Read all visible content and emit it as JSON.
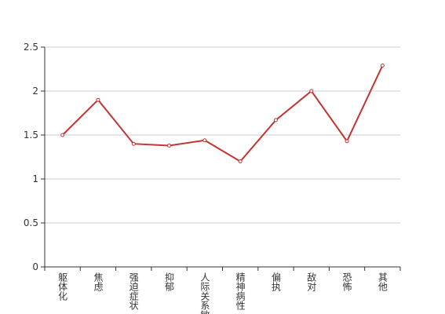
{
  "chart_data": {
    "type": "line",
    "categories": [
      "躯体化",
      "焦虑",
      "强迫症状",
      "抑郁",
      "人际关系敏感",
      "精神病性",
      "偏执",
      "敌对",
      "恐怖",
      "其他"
    ],
    "values": [
      1.5,
      1.9,
      1.4,
      1.38,
      1.44,
      1.2,
      1.67,
      2.0,
      1.43,
      2.29
    ],
    "color": "#c23531",
    "ylim": [
      0,
      2.5
    ],
    "yticks": [
      0,
      0.5,
      1,
      1.5,
      2,
      2.5
    ],
    "grid": true
  }
}
